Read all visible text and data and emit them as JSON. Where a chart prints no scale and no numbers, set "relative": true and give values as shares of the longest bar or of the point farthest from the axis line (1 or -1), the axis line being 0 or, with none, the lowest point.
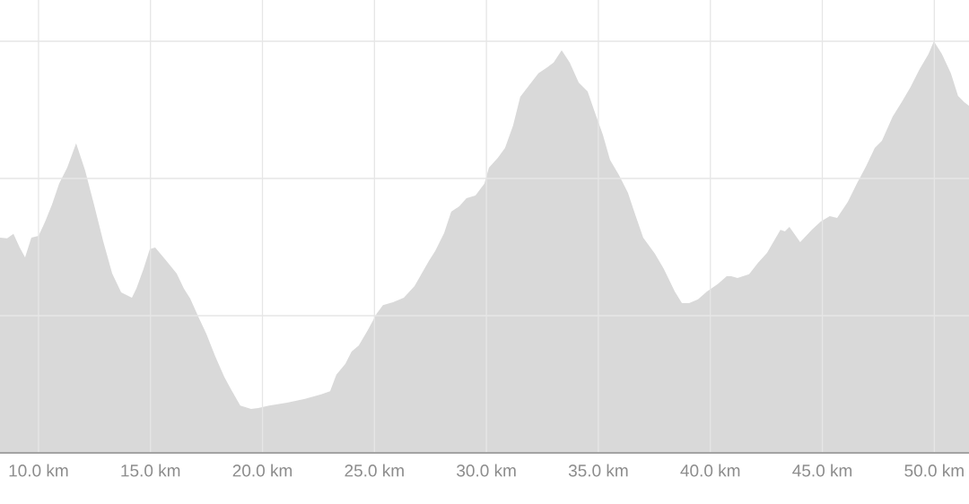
{
  "chart_data": {
    "type": "area",
    "relative": true,
    "color": "#d9d9d9",
    "grid": true,
    "xlim": [
      8.28,
      51.55
    ],
    "xticks": [
      {
        "value": 10,
        "label": "10.0 km"
      },
      {
        "value": 15,
        "label": "15.0 km"
      },
      {
        "value": 20,
        "label": "20.0 km"
      },
      {
        "value": 25,
        "label": "25.0 km"
      },
      {
        "value": 30,
        "label": "30.0 km"
      },
      {
        "value": 35,
        "label": "35.0 km"
      },
      {
        "value": 40,
        "label": "40.0 km"
      },
      {
        "value": 45,
        "label": "45.0 km"
      },
      {
        "value": 50,
        "label": "50.0 km"
      }
    ],
    "x": [
      8.28,
      8.6,
      8.88,
      9.16,
      9.4,
      9.68,
      10.0,
      10.28,
      10.6,
      10.92,
      11.28,
      11.68,
      12.08,
      12.48,
      12.88,
      13.29,
      13.69,
      14.17,
      14.37,
      14.69,
      14.97,
      15.21,
      15.69,
      16.17,
      16.49,
      16.77,
      17.17,
      17.49,
      17.89,
      18.29,
      18.61,
      19.01,
      19.49,
      19.81,
      20.3,
      21.1,
      21.9,
      22.62,
      23.02,
      23.3,
      23.7,
      23.98,
      24.3,
      24.7,
      25.1,
      25.38,
      25.83,
      26.31,
      26.79,
      27.11,
      27.43,
      27.71,
      28.11,
      28.43,
      28.79,
      29.11,
      29.51,
      29.91,
      30.11,
      30.51,
      30.83,
      31.19,
      31.51,
      31.91,
      32.32,
      32.72,
      33.0,
      33.36,
      33.72,
      34.12,
      34.52,
      34.8,
      35.2,
      35.52,
      35.92,
      36.32,
      36.6,
      37.0,
      37.52,
      37.92,
      38.41,
      38.73,
      39.05,
      39.45,
      39.85,
      40.33,
      40.73,
      40.93,
      41.21,
      41.73,
      42.13,
      42.53,
      42.85,
      43.13,
      43.33,
      43.53,
      44.01,
      44.53,
      44.93,
      45.33,
      45.66,
      46.14,
      46.54,
      46.94,
      47.34,
      47.66,
      48.14,
      48.54,
      48.94,
      49.34,
      49.74,
      49.98,
      50.34,
      50.74,
      51.06,
      51.34,
      51.55
    ],
    "values": [
      0.523,
      0.521,
      0.532,
      0.499,
      0.475,
      0.523,
      0.527,
      0.56,
      0.603,
      0.654,
      0.693,
      0.752,
      0.686,
      0.603,
      0.516,
      0.436,
      0.39,
      0.377,
      0.399,
      0.447,
      0.495,
      0.499,
      0.468,
      0.436,
      0.399,
      0.375,
      0.327,
      0.29,
      0.235,
      0.185,
      0.153,
      0.115,
      0.107,
      0.109,
      0.115,
      0.122,
      0.131,
      0.142,
      0.15,
      0.19,
      0.216,
      0.246,
      0.261,
      0.298,
      0.338,
      0.359,
      0.366,
      0.377,
      0.405,
      0.436,
      0.466,
      0.49,
      0.534,
      0.586,
      0.599,
      0.619,
      0.625,
      0.654,
      0.693,
      0.717,
      0.741,
      0.795,
      0.865,
      0.893,
      0.922,
      0.937,
      0.948,
      0.978,
      0.948,
      0.9,
      0.878,
      0.834,
      0.773,
      0.712,
      0.675,
      0.632,
      0.586,
      0.523,
      0.484,
      0.447,
      0.392,
      0.364,
      0.364,
      0.373,
      0.392,
      0.41,
      0.429,
      0.429,
      0.425,
      0.434,
      0.462,
      0.486,
      0.516,
      0.542,
      0.538,
      0.549,
      0.512,
      0.542,
      0.562,
      0.575,
      0.571,
      0.61,
      0.654,
      0.695,
      0.741,
      0.758,
      0.817,
      0.852,
      0.889,
      0.932,
      0.969,
      1.0,
      0.969,
      0.922,
      0.867,
      0.852,
      0.843
    ]
  }
}
